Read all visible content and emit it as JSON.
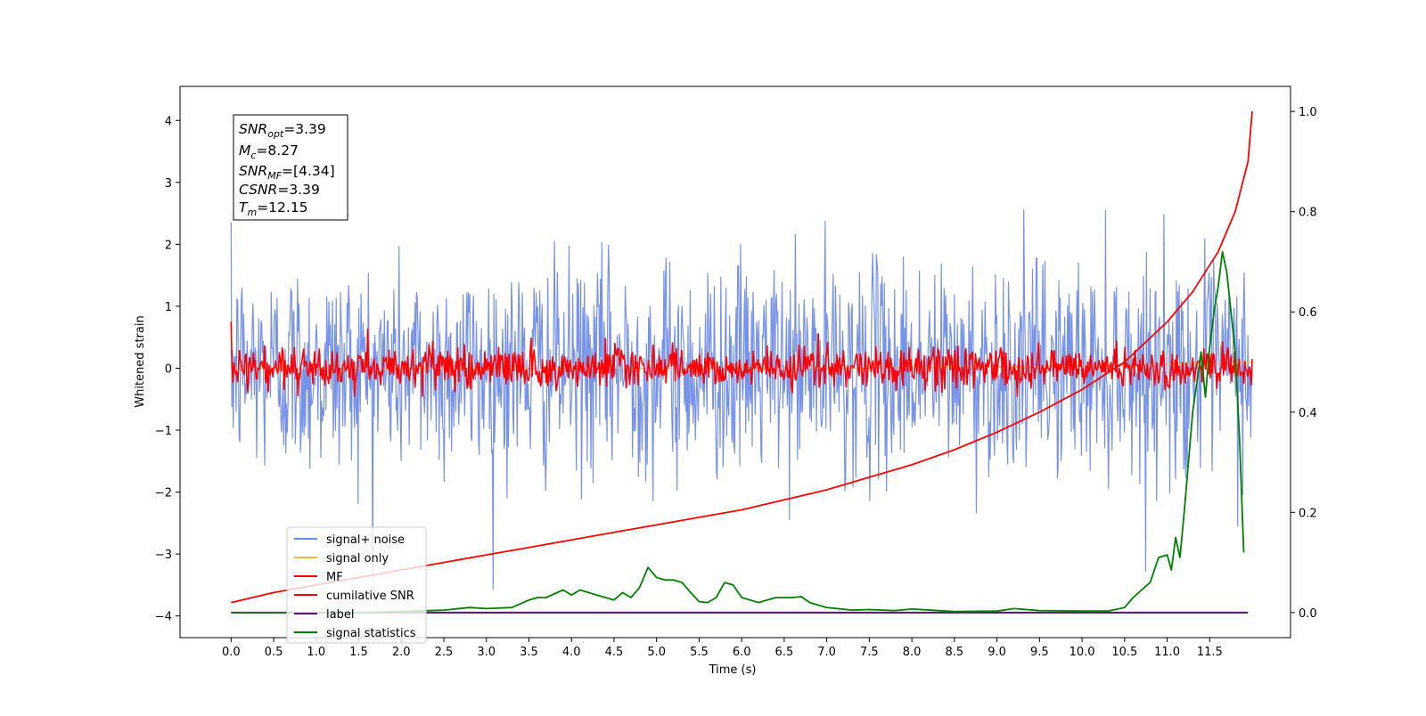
{
  "chart_data": {
    "type": "line",
    "title": "",
    "xlabel": "Time (s)",
    "ylabel": "Whitened strain",
    "y2label": "",
    "xlim": [
      -0.6,
      12.45
    ],
    "ylim": [
      -4.35,
      4.55
    ],
    "y2lim": [
      -0.05,
      1.05
    ],
    "x_ticks": [
      0.0,
      0.5,
      1.0,
      1.5,
      2.0,
      2.5,
      3.0,
      3.5,
      4.0,
      4.5,
      5.0,
      5.5,
      6.0,
      6.5,
      7.0,
      7.5,
      8.0,
      8.5,
      9.0,
      9.5,
      10.0,
      10.5,
      11.0,
      11.5
    ],
    "x_tick_labels": [
      "0.0",
      "0.5",
      "1.0",
      "1.5",
      "2.0",
      "2.5",
      "3.0",
      "3.5",
      "4.0",
      "4.5",
      "5.0",
      "5.5",
      "6.0",
      "6.5",
      "7.0",
      "7.5",
      "8.0",
      "8.5",
      "9.0",
      "9.5",
      "10.0",
      "10.5",
      "11.0",
      "11.5"
    ],
    "y_ticks": [
      -4,
      -3,
      -2,
      -1,
      0,
      1,
      2,
      3,
      4
    ],
    "y_tick_labels": [
      "−4",
      "−3",
      "−2",
      "−1",
      "0",
      "1",
      "2",
      "3",
      "4"
    ],
    "y2_ticks": [
      0.0,
      0.2,
      0.4,
      0.6,
      0.8,
      1.0
    ],
    "y2_tick_labels": [
      "0.0",
      "0.2",
      "0.4",
      "0.6",
      "0.8",
      "1.0"
    ],
    "grid": false,
    "legend_position": "lower-left",
    "noise_profile": {
      "x_range": [
        0.0,
        12.0
      ],
      "samples": 1400,
      "center": 0.0,
      "spread": 0.85,
      "max_high": 4.15,
      "max_low": -3.95
    },
    "mf_profile": {
      "x_range": [
        0.0,
        12.0
      ],
      "samples": 1100,
      "center": 0.0,
      "spread": 0.16,
      "max_high": 1.0,
      "max_low": -0.45,
      "start_value": 0.75
    },
    "series": [
      {
        "name": "signal+ noise",
        "axis": "left",
        "color": "#6b89e4",
        "values_description_only_for_render": "dense noise"
      },
      {
        "name": "signal only",
        "axis": "left",
        "color": "#f5b14a",
        "x": [
          0.0,
          7.5,
          8.0,
          9.0,
          10.0,
          10.5,
          11.0,
          11.5,
          11.8,
          12.0
        ],
        "y": [
          0.0,
          0.0,
          0.01,
          0.02,
          0.03,
          0.05,
          0.06,
          0.08,
          0.09,
          0.1
        ]
      },
      {
        "name": "MF",
        "axis": "left",
        "color": "#ff0000"
      },
      {
        "name": "cumilative SNR",
        "axis": "right",
        "color": "#ff0000",
        "x": [
          0.0,
          0.5,
          1.0,
          1.5,
          2.0,
          2.5,
          3.0,
          3.5,
          4.0,
          4.5,
          5.0,
          5.5,
          6.0,
          6.5,
          7.0,
          7.5,
          8.0,
          8.5,
          9.0,
          9.5,
          10.0,
          10.5,
          11.0,
          11.3,
          11.6,
          11.8,
          11.95,
          12.0
        ],
        "y": [
          0.02,
          0.04,
          0.055,
          0.07,
          0.085,
          0.1,
          0.115,
          0.13,
          0.145,
          0.16,
          0.175,
          0.19,
          0.205,
          0.225,
          0.245,
          0.27,
          0.295,
          0.325,
          0.36,
          0.4,
          0.445,
          0.5,
          0.58,
          0.64,
          0.72,
          0.8,
          0.9,
          1.0
        ]
      },
      {
        "name": "label",
        "axis": "right",
        "color": "#5b0f6e",
        "x": [
          0.0,
          11.95
        ],
        "y": [
          0.0,
          0.0
        ]
      },
      {
        "name": "signal statistics",
        "axis": "right",
        "color": "#008000",
        "x": [
          0.0,
          0.5,
          1.0,
          1.5,
          2.0,
          2.5,
          2.8,
          3.0,
          3.3,
          3.5,
          3.6,
          3.7,
          3.9,
          4.0,
          4.1,
          4.2,
          4.3,
          4.5,
          4.6,
          4.7,
          4.8,
          4.9,
          5.0,
          5.1,
          5.2,
          5.3,
          5.4,
          5.5,
          5.6,
          5.7,
          5.8,
          5.9,
          6.0,
          6.2,
          6.3,
          6.4,
          6.5,
          6.6,
          6.7,
          6.8,
          7.0,
          7.3,
          7.5,
          7.8,
          8.0,
          8.5,
          9.0,
          9.2,
          9.5,
          10.0,
          10.3,
          10.5,
          10.6,
          10.7,
          10.8,
          10.9,
          11.0,
          11.05,
          11.1,
          11.15,
          11.2,
          11.3,
          11.4,
          11.45,
          11.5,
          11.55,
          11.6,
          11.65,
          11.7,
          11.75,
          11.8,
          11.85,
          11.9
        ],
        "y": [
          0.0,
          0.0,
          0.0,
          0.0,
          0.002,
          0.005,
          0.01,
          0.008,
          0.01,
          0.025,
          0.03,
          0.03,
          0.045,
          0.035,
          0.045,
          0.04,
          0.035,
          0.025,
          0.04,
          0.03,
          0.05,
          0.09,
          0.07,
          0.065,
          0.065,
          0.06,
          0.04,
          0.022,
          0.02,
          0.03,
          0.06,
          0.055,
          0.03,
          0.02,
          0.025,
          0.03,
          0.03,
          0.03,
          0.032,
          0.02,
          0.01,
          0.005,
          0.006,
          0.004,
          0.007,
          0.002,
          0.003,
          0.008,
          0.004,
          0.003,
          0.003,
          0.01,
          0.03,
          0.045,
          0.06,
          0.11,
          0.115,
          0.085,
          0.15,
          0.11,
          0.2,
          0.4,
          0.52,
          0.43,
          0.53,
          0.6,
          0.65,
          0.72,
          0.68,
          0.6,
          0.52,
          0.35,
          0.12
        ]
      }
    ],
    "info_box": {
      "snr_opt": {
        "label": "SNR",
        "sub": "opt",
        "value": "=3.39"
      },
      "mc": {
        "label": "M",
        "sub": "c",
        "value": "=8.27"
      },
      "snr_mf": {
        "label": "SNR",
        "sub": "MF",
        "value": "=[4.34]"
      },
      "csnr": {
        "label": "CSNR",
        "sub": "",
        "value": "=3.39"
      },
      "tm": {
        "label": "T",
        "sub": "m",
        "value": "=12.15"
      }
    },
    "legend": {
      "items": [
        {
          "label": "signal+ noise",
          "color": "#6b89e4"
        },
        {
          "label": "signal only",
          "color": "#f5b14a"
        },
        {
          "label": "MF",
          "color": "#ff0000"
        },
        {
          "label": "cumilative SNR",
          "color": "#ff0000"
        },
        {
          "label": "label",
          "color": "#5b0f6e"
        },
        {
          "label": "signal statistics",
          "color": "#008000"
        }
      ]
    }
  }
}
